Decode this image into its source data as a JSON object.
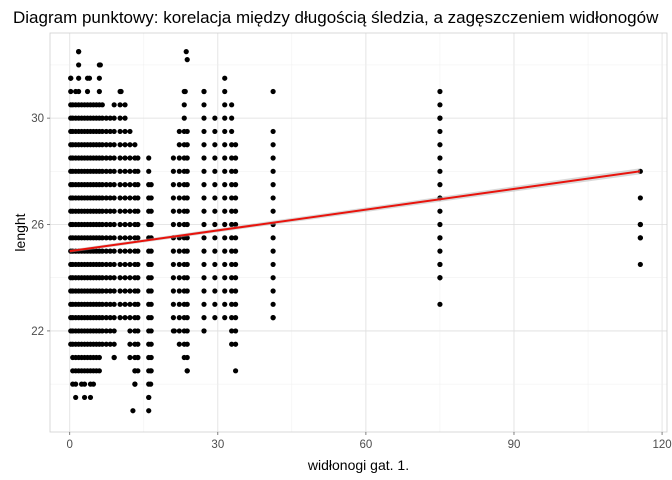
{
  "chart_data": {
    "type": "scatter",
    "title": "Diagram punktowy: korelacja między długością śledzia, a zagęszczeniem widłonogów",
    "xlabel": "widłonogi gat. 1.",
    "ylabel": "lenght",
    "xlim": [
      -4,
      121
    ],
    "ylim": [
      18.2,
      33.2
    ],
    "x_ticks": [
      0,
      30,
      60,
      90,
      120
    ],
    "y_ticks": [
      22,
      26,
      30
    ],
    "grid": true,
    "point_color": "#000000",
    "trend_line": {
      "color": "#e8130c",
      "x": [
        0,
        115.5
      ],
      "y": [
        25.0,
        28.0
      ]
    },
    "columns": [
      {
        "x": 0.2,
        "y_min": 21.5,
        "y_max": 31.5
      },
      {
        "x": 0.6,
        "y_min": 20.0,
        "y_max": 30.5
      },
      {
        "x": 1.2,
        "y_min": 19.5,
        "y_max": 31.0
      },
      {
        "x": 1.8,
        "y_min": 20.5,
        "y_max": 32.5
      },
      {
        "x": 2.4,
        "y_min": 20.0,
        "y_max": 30.5
      },
      {
        "x": 3.0,
        "y_min": 19.5,
        "y_max": 30.5
      },
      {
        "x": 3.6,
        "y_min": 20.5,
        "y_max": 31.5
      },
      {
        "x": 4.2,
        "y_min": 19.5,
        "y_max": 30.5
      },
      {
        "x": 4.8,
        "y_min": 20.0,
        "y_max": 30.5
      },
      {
        "x": 5.4,
        "y_min": 20.5,
        "y_max": 30.5
      },
      {
        "x": 6.0,
        "y_min": 20.5,
        "y_max": 32.0
      },
      {
        "x": 6.6,
        "y_min": 21.5,
        "y_max": 30.5
      },
      {
        "x": 7.4,
        "y_min": 21.5,
        "y_max": 30.0
      },
      {
        "x": 8.2,
        "y_min": 21.5,
        "y_max": 30.0
      },
      {
        "x": 9.0,
        "y_min": 21.0,
        "y_max": 30.5
      },
      {
        "x": 10.2,
        "y_min": 22.5,
        "y_max": 31.0
      },
      {
        "x": 11.2,
        "y_min": 22.5,
        "y_max": 30.5
      },
      {
        "x": 12.2,
        "y_min": 21.0,
        "y_max": 29.5
      },
      {
        "x": 13.2,
        "y_min": 20.0,
        "y_max": 29.0
      },
      {
        "x": 13.8,
        "y_min": 20.5,
        "y_max": 28.5
      },
      {
        "x": 16.0,
        "y_min": 19.5,
        "y_max": 28.5
      },
      {
        "x": 16.5,
        "y_min": 20.5,
        "y_max": 27.5
      },
      {
        "x": 21.0,
        "y_min": 22.0,
        "y_max": 28.5
      },
      {
        "x": 22.2,
        "y_min": 21.5,
        "y_max": 29.5
      },
      {
        "x": 23.2,
        "y_min": 21.0,
        "y_max": 31.0
      },
      {
        "x": 23.8,
        "y_min": 20.5,
        "y_max": 29.5
      },
      {
        "x": 27.2,
        "y_min": 22.0,
        "y_max": 31.0
      },
      {
        "x": 29.4,
        "y_min": 22.5,
        "y_max": 30.0
      },
      {
        "x": 31.4,
        "y_min": 22.5,
        "y_max": 31.0
      },
      {
        "x": 32.8,
        "y_min": 21.5,
        "y_max": 30.5
      },
      {
        "x": 33.6,
        "y_min": 21.5,
        "y_max": 29.0
      },
      {
        "x": 41.2,
        "y_min": 22.5,
        "y_max": 29.5
      },
      {
        "x": 75.0,
        "y_min": 24.0,
        "y_max": 30.0
      },
      {
        "x": 115.6,
        "y_min": 25.5,
        "y_max": 26.0
      }
    ],
    "points": [
      [
        1.8,
        32.5
      ],
      [
        23.6,
        32.5
      ],
      [
        23.8,
        32.2
      ],
      [
        4.0,
        31.5
      ],
      [
        6.2,
        32.0
      ],
      [
        0.2,
        31.5
      ],
      [
        31.4,
        31.5
      ],
      [
        10.4,
        31.0
      ],
      [
        23.4,
        31.0
      ],
      [
        27.2,
        31.0
      ],
      [
        41.2,
        31.0
      ],
      [
        75.0,
        31.0
      ],
      [
        75.0,
        30.5
      ],
      [
        75.0,
        30.0
      ],
      [
        12.8,
        19.0
      ],
      [
        13.2,
        20.0
      ],
      [
        13.2,
        20.5
      ],
      [
        16.0,
        19.0
      ],
      [
        16.0,
        19.5
      ],
      [
        16.4,
        20.0
      ],
      [
        16.4,
        20.5
      ],
      [
        9.0,
        21.0
      ],
      [
        13.8,
        21.0
      ],
      [
        23.8,
        20.5
      ],
      [
        33.6,
        20.5
      ],
      [
        27.2,
        22.0
      ],
      [
        21.2,
        22.0
      ],
      [
        41.2,
        22.5
      ],
      [
        75.0,
        23.0
      ],
      [
        75.0,
        24.0
      ],
      [
        75.0,
        24.5
      ],
      [
        75.0,
        25.5
      ],
      [
        115.6,
        28.0
      ],
      [
        115.6,
        27.0
      ],
      [
        115.6,
        26.0
      ],
      [
        115.6,
        25.5
      ],
      [
        115.6,
        24.5
      ]
    ]
  }
}
